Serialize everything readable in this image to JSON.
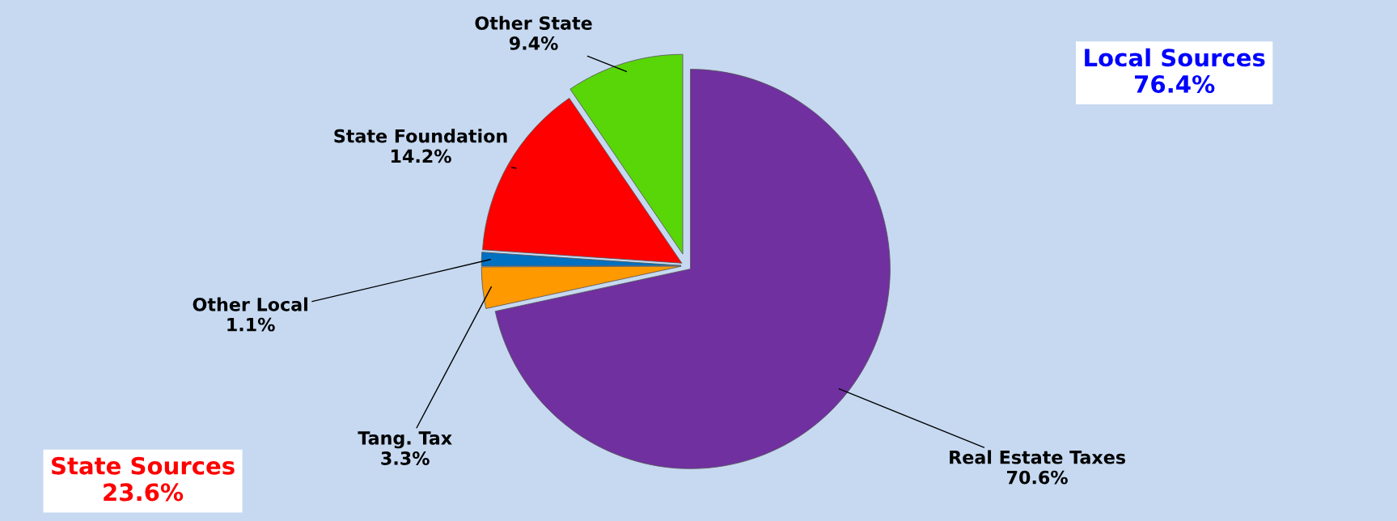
{
  "chart_data": {
    "type": "pie",
    "categories": [
      "Real Estate Taxes",
      "Tang. Tax",
      "Other Local",
      "State Foundation",
      "Other State"
    ],
    "values": [
      70.6,
      3.3,
      1.1,
      14.2,
      9.4
    ],
    "value_labels": [
      "70.6%",
      "3.3%",
      "1.1%",
      "14.2%",
      "9.4%"
    ],
    "colors": [
      "#7030a0",
      "#ff9900",
      "#0070c0",
      "#ff0000",
      "#58d608"
    ],
    "annotations": [
      "Local Sources\n76.4%",
      "State Sources\n23.6%"
    ],
    "legend": false
  }
}
